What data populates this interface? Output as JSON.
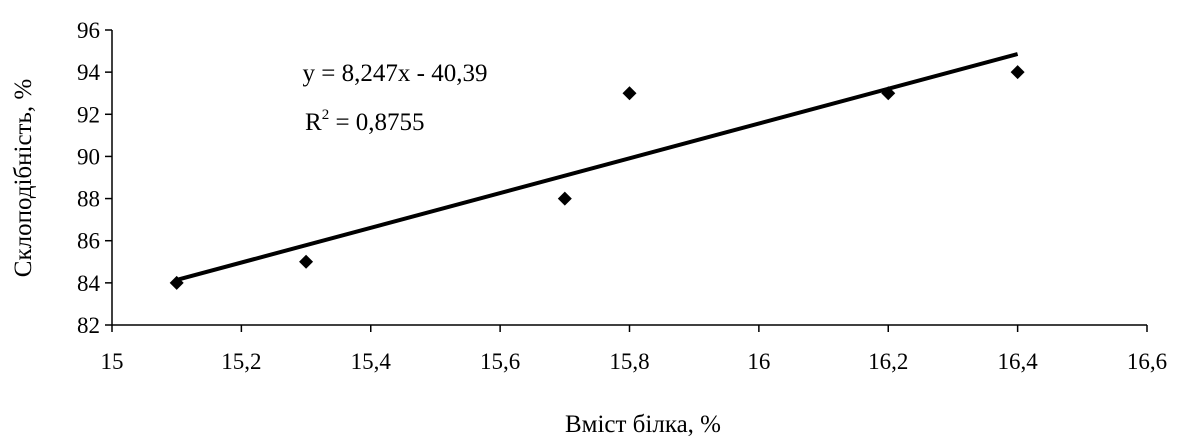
{
  "chart_data": {
    "type": "scatter",
    "title": "",
    "xlabel": "Вміст білка, %",
    "ylabel": "Склоподібність, %",
    "xlim": [
      15,
      16.6
    ],
    "ylim": [
      82,
      96
    ],
    "x_ticks": [
      15,
      15.2,
      15.4,
      15.6,
      15.8,
      16,
      16.2,
      16.4,
      16.6
    ],
    "x_tick_labels": [
      "15",
      "15,2",
      "15,4",
      "15,6",
      "15,8",
      "16",
      "16,2",
      "16,4",
      "16,6"
    ],
    "y_ticks": [
      82,
      84,
      86,
      88,
      90,
      92,
      94,
      96
    ],
    "y_tick_labels": [
      "82",
      "84",
      "86",
      "88",
      "90",
      "92",
      "94",
      "96"
    ],
    "grid": false,
    "legend": "none",
    "marker": "diamond",
    "series": [
      {
        "x": [
          15.1,
          15.3,
          15.7,
          15.8,
          16.2,
          16.4
        ],
        "y": [
          84,
          85,
          88,
          93,
          93,
          94
        ]
      }
    ],
    "trendline": {
      "type": "linear",
      "slope": 8.247,
      "intercept": -40.39,
      "x_range": [
        15.1,
        16.4
      ],
      "equation_label": "y = 8,247x - 40,39",
      "r2_label_prefix": "R",
      "r2_label_suffix": " = 0,8755"
    },
    "colors": {
      "marker": "#000000",
      "trendline": "#000000",
      "axis": "#000000"
    }
  }
}
